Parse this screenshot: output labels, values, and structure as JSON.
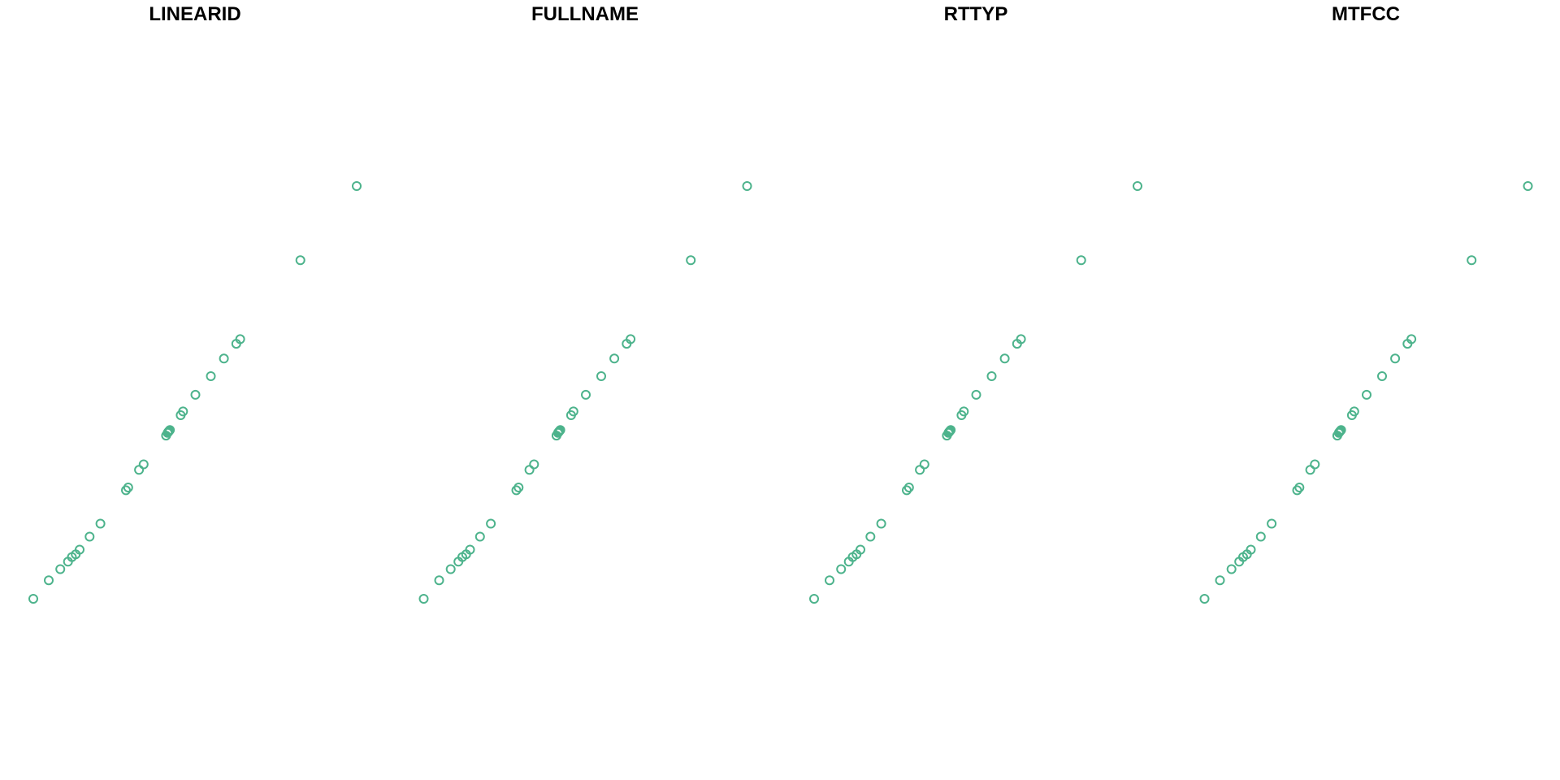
{
  "figure": {
    "marker_color": "#4DB38C",
    "marker_shape": "open-circle"
  },
  "chart_data": [
    {
      "type": "scatter",
      "title": "LINEARID",
      "xlabel": "",
      "ylabel": "",
      "axes": "none",
      "grid": false,
      "legend": "none",
      "points": [
        [
          -108.1,
          32.05
        ],
        [
          -107.9,
          32.25
        ],
        [
          -107.75,
          32.37
        ],
        [
          -107.65,
          32.45
        ],
        [
          -107.6,
          32.5
        ],
        [
          -107.55,
          32.53
        ],
        [
          -107.5,
          32.58
        ],
        [
          -107.37,
          32.72
        ],
        [
          -107.23,
          32.86
        ],
        [
          -106.9,
          33.22
        ],
        [
          -106.87,
          33.25
        ],
        [
          -106.73,
          33.44
        ],
        [
          -106.67,
          33.5
        ],
        [
          -106.38,
          33.81
        ],
        [
          -106.36,
          33.84
        ],
        [
          -106.35,
          33.85
        ],
        [
          -106.34,
          33.86
        ],
        [
          -106.33,
          33.87
        ],
        [
          -106.19,
          34.03
        ],
        [
          -106.16,
          34.07
        ],
        [
          -106.0,
          34.25
        ],
        [
          -105.8,
          34.45
        ],
        [
          -105.63,
          34.64
        ],
        [
          -105.47,
          34.8
        ],
        [
          -105.42,
          34.85
        ],
        [
          -104.64,
          35.7
        ],
        [
          -103.91,
          36.5
        ]
      ]
    },
    {
      "type": "scatter",
      "title": "FULLNAME",
      "xlabel": "",
      "ylabel": "",
      "axes": "none",
      "grid": false,
      "legend": "none",
      "points": [
        [
          -108.1,
          32.05
        ],
        [
          -107.9,
          32.25
        ],
        [
          -107.75,
          32.37
        ],
        [
          -107.65,
          32.45
        ],
        [
          -107.6,
          32.5
        ],
        [
          -107.55,
          32.53
        ],
        [
          -107.5,
          32.58
        ],
        [
          -107.37,
          32.72
        ],
        [
          -107.23,
          32.86
        ],
        [
          -106.9,
          33.22
        ],
        [
          -106.87,
          33.25
        ],
        [
          -106.73,
          33.44
        ],
        [
          -106.67,
          33.5
        ],
        [
          -106.38,
          33.81
        ],
        [
          -106.36,
          33.84
        ],
        [
          -106.35,
          33.85
        ],
        [
          -106.34,
          33.86
        ],
        [
          -106.33,
          33.87
        ],
        [
          -106.19,
          34.03
        ],
        [
          -106.16,
          34.07
        ],
        [
          -106.0,
          34.25
        ],
        [
          -105.8,
          34.45
        ],
        [
          -105.63,
          34.64
        ],
        [
          -105.47,
          34.8
        ],
        [
          -105.42,
          34.85
        ],
        [
          -104.64,
          35.7
        ],
        [
          -103.91,
          36.5
        ]
      ]
    },
    {
      "type": "scatter",
      "title": "RTTYP",
      "xlabel": "",
      "ylabel": "",
      "axes": "none",
      "grid": false,
      "legend": "none",
      "points": [
        [
          -108.1,
          32.05
        ],
        [
          -107.9,
          32.25
        ],
        [
          -107.75,
          32.37
        ],
        [
          -107.65,
          32.45
        ],
        [
          -107.6,
          32.5
        ],
        [
          -107.55,
          32.53
        ],
        [
          -107.5,
          32.58
        ],
        [
          -107.37,
          32.72
        ],
        [
          -107.23,
          32.86
        ],
        [
          -106.9,
          33.22
        ],
        [
          -106.87,
          33.25
        ],
        [
          -106.73,
          33.44
        ],
        [
          -106.67,
          33.5
        ],
        [
          -106.38,
          33.81
        ],
        [
          -106.36,
          33.84
        ],
        [
          -106.35,
          33.85
        ],
        [
          -106.34,
          33.86
        ],
        [
          -106.33,
          33.87
        ],
        [
          -106.19,
          34.03
        ],
        [
          -106.16,
          34.07
        ],
        [
          -106.0,
          34.25
        ],
        [
          -105.8,
          34.45
        ],
        [
          -105.63,
          34.64
        ],
        [
          -105.47,
          34.8
        ],
        [
          -105.42,
          34.85
        ],
        [
          -104.64,
          35.7
        ],
        [
          -103.91,
          36.5
        ]
      ]
    },
    {
      "type": "scatter",
      "title": "MTFCC",
      "xlabel": "",
      "ylabel": "",
      "axes": "none",
      "grid": false,
      "legend": "none",
      "points": [
        [
          -108.1,
          32.05
        ],
        [
          -107.9,
          32.25
        ],
        [
          -107.75,
          32.37
        ],
        [
          -107.65,
          32.45
        ],
        [
          -107.6,
          32.5
        ],
        [
          -107.55,
          32.53
        ],
        [
          -107.5,
          32.58
        ],
        [
          -107.37,
          32.72
        ],
        [
          -107.23,
          32.86
        ],
        [
          -106.9,
          33.22
        ],
        [
          -106.87,
          33.25
        ],
        [
          -106.73,
          33.44
        ],
        [
          -106.67,
          33.5
        ],
        [
          -106.38,
          33.81
        ],
        [
          -106.36,
          33.84
        ],
        [
          -106.35,
          33.85
        ],
        [
          -106.34,
          33.86
        ],
        [
          -106.33,
          33.87
        ],
        [
          -106.19,
          34.03
        ],
        [
          -106.16,
          34.07
        ],
        [
          -106.0,
          34.25
        ],
        [
          -105.8,
          34.45
        ],
        [
          -105.63,
          34.64
        ],
        [
          -105.47,
          34.8
        ],
        [
          -105.42,
          34.85
        ],
        [
          -104.64,
          35.7
        ],
        [
          -103.91,
          36.5
        ]
      ]
    }
  ]
}
